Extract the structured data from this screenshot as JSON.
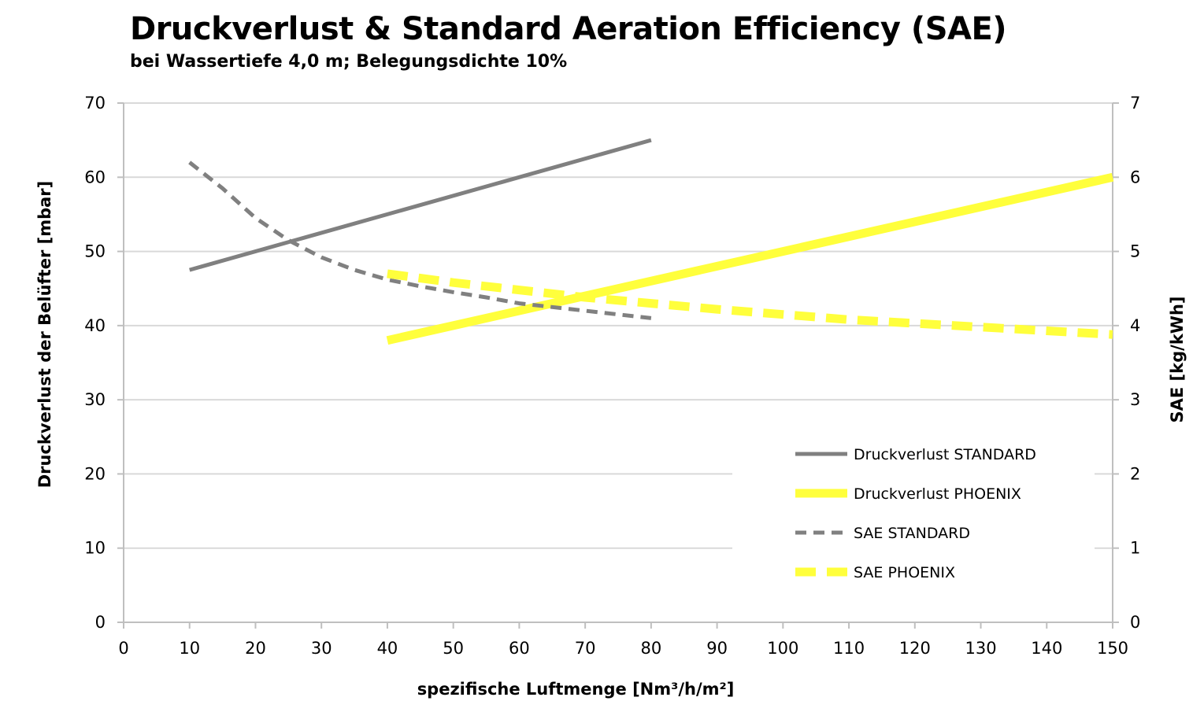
{
  "chart_data": {
    "type": "line",
    "title": "Druckverlust & Standard Aeration Efficiency (SAE)",
    "subtitle": "bei Wassertiefe 4,0 m; Belegungsdichte 10%",
    "xlabel": "spezifische Luftmenge [Nm³/h/m²]",
    "ylabel": "Druckverlust der Belüfter [mbar]",
    "y2label": "SAE [kg/kWh]",
    "xlim": [
      0,
      150
    ],
    "ylim": [
      0,
      70
    ],
    "y2lim": [
      0,
      7
    ],
    "xticks": [
      "0",
      "10",
      "20",
      "30",
      "40",
      "50",
      "60",
      "70",
      "80",
      "90",
      "100",
      "110",
      "120",
      "130",
      "140",
      "150"
    ],
    "yticks": [
      "0",
      "10",
      "20",
      "30",
      "40",
      "50",
      "60",
      "70"
    ],
    "y2ticks": [
      "0",
      "1",
      "2",
      "3",
      "4",
      "5",
      "6",
      "7"
    ],
    "grid": "horizontal",
    "legend_position": "lower-right",
    "series": [
      {
        "name": "Druckverlust STANDARD",
        "axis": "left",
        "color": "#808080",
        "style": "solid",
        "width": 5,
        "x": [
          10,
          80
        ],
        "y": [
          47.5,
          65
        ]
      },
      {
        "name": "Druckverlust PHOENIX",
        "axis": "left",
        "color": "#ffff3c",
        "style": "solid",
        "width": 11,
        "x": [
          40,
          150
        ],
        "y": [
          38,
          60
        ]
      },
      {
        "name": "SAE STANDARD",
        "axis": "right",
        "color": "#808080",
        "style": "dashed",
        "width": 5,
        "x": [
          10,
          15,
          20,
          25,
          30,
          35,
          40,
          45,
          50,
          55,
          60,
          65,
          70,
          75,
          80
        ],
        "y": [
          6.2,
          5.85,
          5.45,
          5.15,
          4.92,
          4.75,
          4.62,
          4.53,
          4.45,
          4.38,
          4.3,
          4.25,
          4.2,
          4.15,
          4.1
        ]
      },
      {
        "name": "SAE PHOENIX",
        "axis": "right",
        "color": "#ffff3c",
        "style": "dashed",
        "width": 11,
        "x": [
          40,
          50,
          60,
          70,
          80,
          90,
          100,
          110,
          120,
          130,
          140,
          150
        ],
        "y": [
          4.7,
          4.58,
          4.48,
          4.38,
          4.3,
          4.22,
          4.15,
          4.08,
          4.03,
          3.98,
          3.93,
          3.88
        ]
      }
    ]
  }
}
